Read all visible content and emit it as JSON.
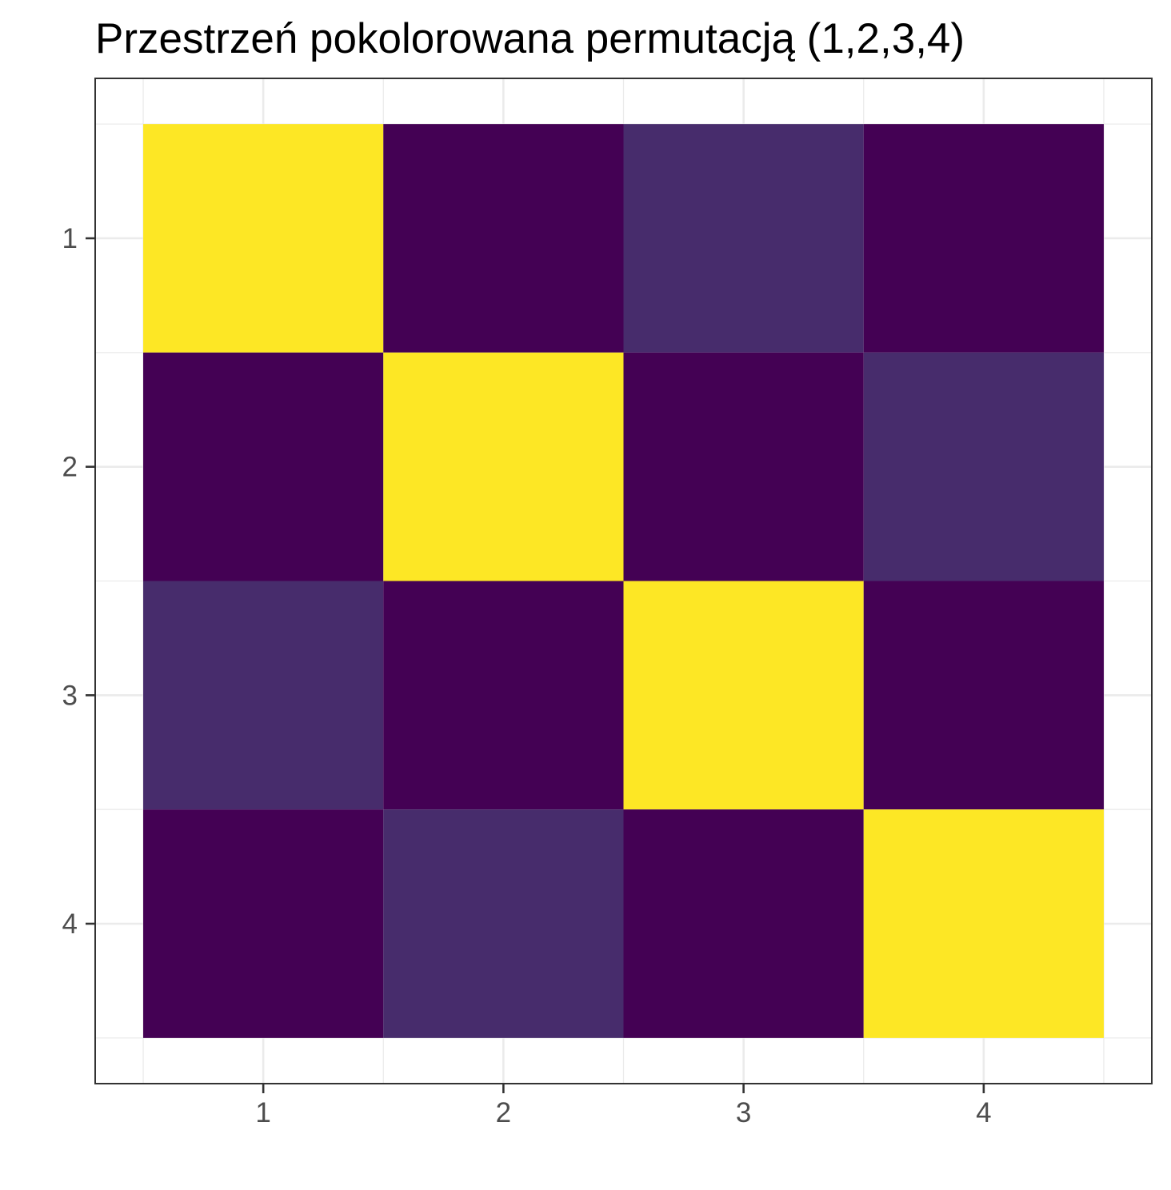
{
  "chart_data": {
    "type": "heatmap",
    "title": "Przestrzeń pokolorowana permutacją (1,2,3,4)",
    "xlabel": "",
    "ylabel": "",
    "x_categories": [
      "1",
      "2",
      "3",
      "4"
    ],
    "y_categories": [
      "1",
      "2",
      "3",
      "4"
    ],
    "y_axis_order": "top-to-bottom",
    "values": [
      [
        2,
        0,
        1,
        0
      ],
      [
        0,
        2,
        0,
        1
      ],
      [
        1,
        0,
        2,
        0
      ],
      [
        0,
        1,
        0,
        2
      ]
    ],
    "colors": {
      "0": "#440154",
      "1": "#472c6c",
      "2": "#fde725"
    },
    "legend": "none",
    "grid": true
  }
}
